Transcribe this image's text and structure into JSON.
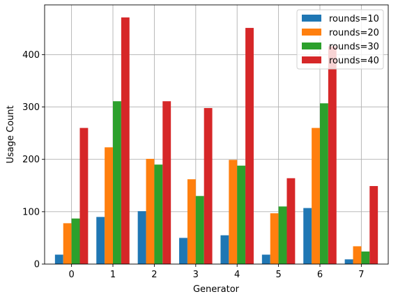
{
  "chart_data": {
    "type": "bar",
    "xlabel": "Generator",
    "ylabel": "Usage Count",
    "categories": [
      "0",
      "1",
      "2",
      "3",
      "4",
      "5",
      "6",
      "7"
    ],
    "ylim": [
      0,
      495
    ],
    "yticks": [
      0,
      100,
      200,
      300,
      400
    ],
    "grid": true,
    "legend_position": "top-right",
    "series": [
      {
        "name": "rounds=10",
        "color": "#1f77b4",
        "values": [
          18,
          90,
          101,
          50,
          55,
          18,
          107,
          9
        ]
      },
      {
        "name": "rounds=20",
        "color": "#ff7f0e",
        "values": [
          78,
          223,
          201,
          162,
          199,
          97,
          260,
          34
        ]
      },
      {
        "name": "rounds=30",
        "color": "#2ca02c",
        "values": [
          87,
          311,
          190,
          130,
          188,
          110,
          307,
          24
        ]
      },
      {
        "name": "rounds=40",
        "color": "#d62728",
        "values": [
          260,
          471,
          311,
          298,
          451,
          164,
          416,
          149
        ]
      }
    ]
  }
}
